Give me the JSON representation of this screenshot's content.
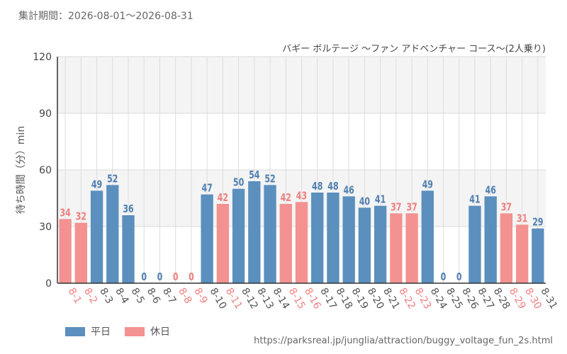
{
  "header": {
    "period_label": "集計期間：2026-08-01～2026-08-31"
  },
  "chart_data": {
    "type": "bar",
    "title": "バギー ボルテージ ～ファン アドベンチャー コース～(2人乗り)",
    "ylabel": "待ち時間（分）min",
    "xlabel": "",
    "ylim": [
      0,
      120
    ],
    "yticks": [
      0,
      30,
      60,
      90,
      120
    ],
    "grid": true,
    "legend_position": "bottom-left",
    "categories": [
      "8-1",
      "8-2",
      "8-3",
      "8-4",
      "8-5",
      "8-6",
      "8-7",
      "8-8",
      "8-9",
      "8-10",
      "8-11",
      "8-12",
      "8-13",
      "8-14",
      "8-15",
      "8-16",
      "8-17",
      "8-18",
      "8-19",
      "8-20",
      "8-21",
      "8-22",
      "8-23",
      "8-24",
      "8-25",
      "8-26",
      "8-27",
      "8-28",
      "8-29",
      "8-30",
      "8-31"
    ],
    "values": [
      34,
      32,
      49,
      52,
      36,
      0,
      0,
      0,
      0,
      47,
      42,
      50,
      54,
      52,
      42,
      43,
      48,
      48,
      46,
      40,
      41,
      37,
      37,
      49,
      0,
      0,
      41,
      46,
      37,
      31,
      29
    ],
    "day_type": [
      "holiday",
      "holiday",
      "weekday",
      "weekday",
      "weekday",
      "weekday",
      "weekday",
      "holiday",
      "holiday",
      "weekday",
      "holiday",
      "weekday",
      "weekday",
      "weekday",
      "holiday",
      "holiday",
      "weekday",
      "weekday",
      "weekday",
      "weekday",
      "weekday",
      "holiday",
      "holiday",
      "weekday",
      "weekday",
      "weekday",
      "weekday",
      "weekday",
      "holiday",
      "holiday",
      "weekday"
    ],
    "series": [
      {
        "key": "weekday",
        "name": "平日",
        "color": "#5b8fbe"
      },
      {
        "key": "holiday",
        "name": "休日",
        "color": "#f49191"
      }
    ],
    "colors": {
      "weekday_label": "#4f7fb0",
      "holiday_label": "#f07f7f",
      "band": "#f4f4f4",
      "grid": "#dddddd",
      "axis_text": "#555555"
    }
  },
  "footer": {
    "source": "https://parksreal.jp/junglia/attraction/buggy_voltage_fun_2s.html"
  }
}
